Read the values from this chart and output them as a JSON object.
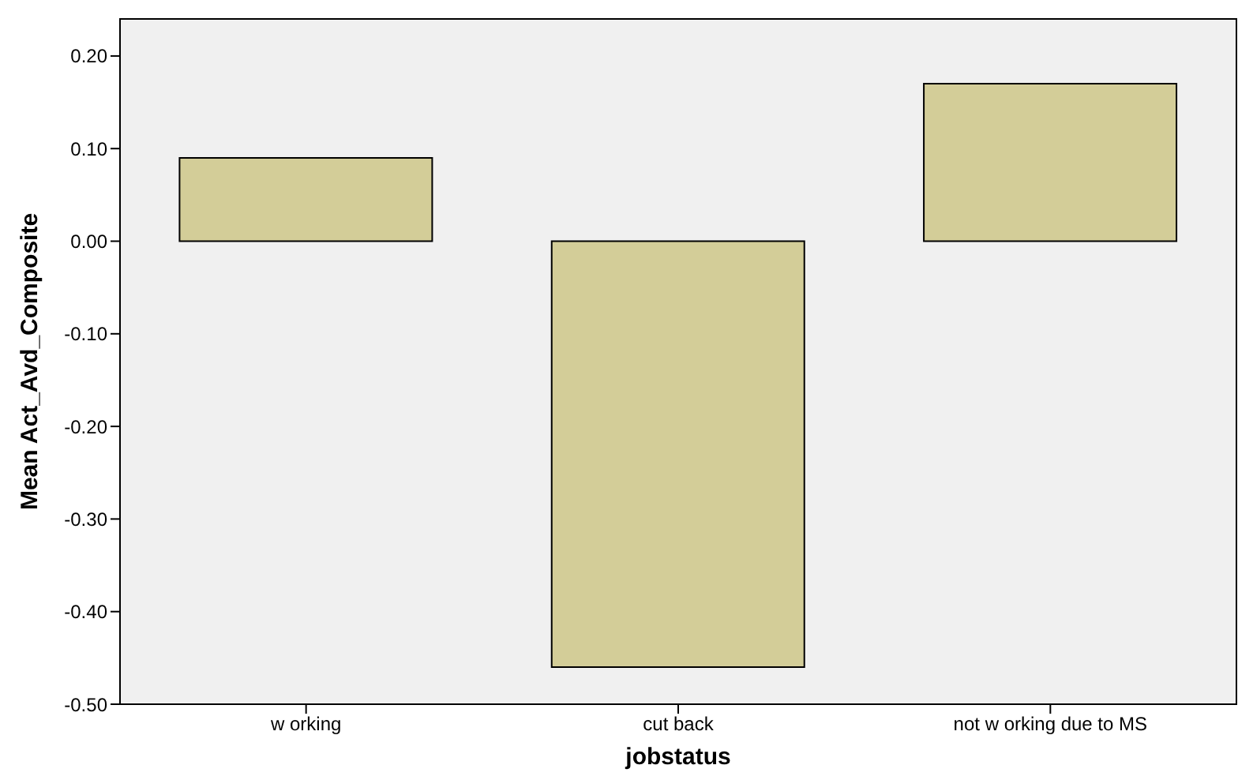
{
  "chart_data": {
    "type": "bar",
    "xlabel": "jobstatus",
    "ylabel": "Mean Act_Avd_Composite",
    "categories": [
      "w orking",
      "cut back",
      "not w orking due to MS"
    ],
    "values": [
      0.09,
      -0.46,
      0.17
    ],
    "color": "#d3cd98",
    "ylim": [
      -0.5,
      0.24
    ],
    "yticks": [
      {
        "value": -0.5,
        "label": "-0.50"
      },
      {
        "value": -0.4,
        "label": "-0.40"
      },
      {
        "value": -0.3,
        "label": "-0.30"
      },
      {
        "value": -0.2,
        "label": "-0.20"
      },
      {
        "value": -0.1,
        "label": "-0.10"
      },
      {
        "value": 0,
        "label": "0.00"
      },
      {
        "value": 0.1,
        "label": "0.10"
      },
      {
        "value": 0.2,
        "label": "0.20"
      }
    ],
    "grid": false,
    "legend": false
  }
}
